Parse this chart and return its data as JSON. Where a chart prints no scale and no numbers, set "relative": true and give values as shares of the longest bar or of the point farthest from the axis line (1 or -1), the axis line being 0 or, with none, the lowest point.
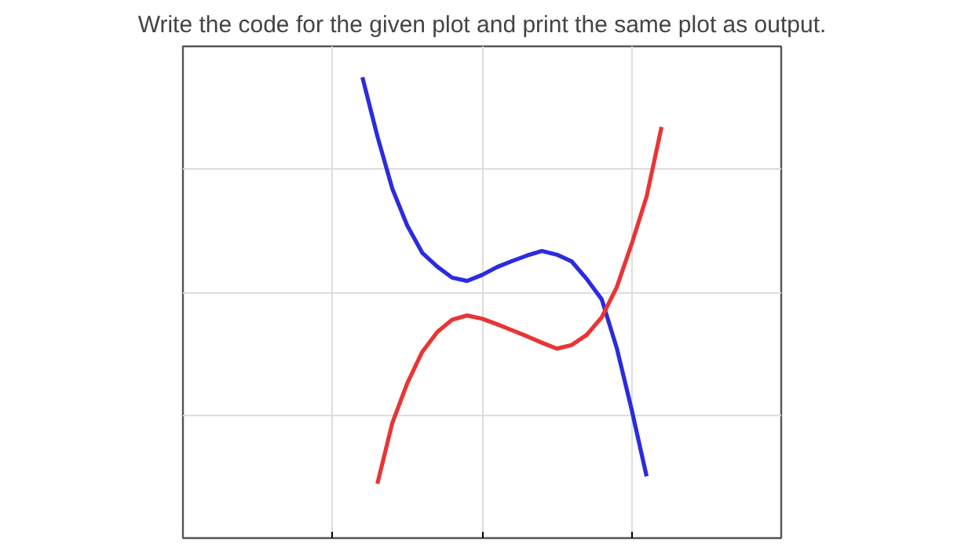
{
  "chart_data": {
    "type": "line",
    "title": "Write the code for the given plot and print the same plot as output.",
    "relative": true,
    "grid": true,
    "categories": [
      null,
      null,
      null,
      null,
      null,
      null,
      null,
      null,
      null,
      null,
      null,
      null,
      null,
      null,
      null,
      null,
      null,
      null,
      null,
      null,
      null,
      null,
      null,
      null,
      null,
      null,
      null,
      null,
      null,
      null,
      null,
      null,
      null,
      null,
      null,
      null,
      null,
      null,
      null,
      null,
      null
    ],
    "series": [
      {
        "color": "#2b2be0",
        "values": [
          null,
          null,
          null,
          null,
          null,
          null,
          null,
          null,
          null,
          null,
          null,
          null,
          1,
          0.872,
          0.758,
          0.678,
          0.619,
          0.589,
          0.565,
          0.558,
          0.571,
          0.588,
          0.601,
          0.613,
          0.623,
          0.615,
          0.6,
          0.562,
          0.518,
          0.413,
          0.279,
          0.134,
          null,
          null,
          null,
          null,
          null,
          null,
          null,
          null,
          null
        ]
      },
      {
        "color": "#e83535",
        "values": [
          null,
          null,
          null,
          null,
          null,
          null,
          null,
          null,
          null,
          null,
          null,
          null,
          null,
          0.118,
          0.25,
          0.336,
          0.404,
          0.447,
          0.474,
          0.483,
          0.476,
          0.464,
          0.451,
          0.438,
          0.424,
          0.411,
          0.419,
          0.441,
          0.479,
          0.544,
          0.638,
          0.741,
          0.892,
          null,
          null,
          null,
          null,
          null,
          null,
          null,
          null
        ]
      }
    ]
  }
}
